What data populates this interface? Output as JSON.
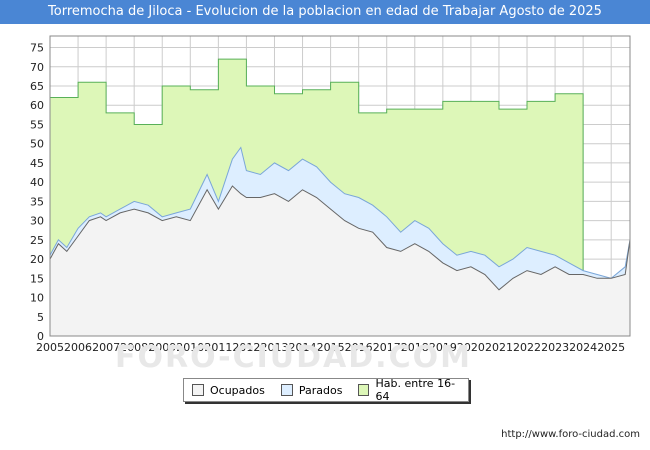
{
  "page": {
    "title": "Torremocha de Jiloca - Evolucion de la poblacion en edad de Trabajar Agosto de 2025",
    "footer": "http://www.foro-ciudad.com",
    "watermark": "FORO-CIUDAD.COM"
  },
  "colors": {
    "title_bg": "#4a86d4",
    "hab_fill": "#ddf7b8",
    "hab_line": "#58b058",
    "parados_fill": "#ddeeff",
    "parados_line": "#7aa6d8",
    "ocupados_fill": "#f3f3f3",
    "ocupados_line": "#666666",
    "grid": "#cccccc"
  },
  "chart_data": {
    "type": "area",
    "title": "Torremocha de Jiloca - Evolucion de la poblacion en edad de Trabajar Agosto de 2025",
    "xlabel": "",
    "ylabel": "",
    "xlim": [
      2005,
      2025.67
    ],
    "ylim": [
      0,
      78
    ],
    "yticks": [
      0,
      5,
      10,
      15,
      20,
      25,
      30,
      35,
      40,
      45,
      50,
      55,
      60,
      65,
      70,
      75
    ],
    "xticks": [
      "2005",
      "2006",
      "2007",
      "2008",
      "2009",
      "2010",
      "2011",
      "2012",
      "2013",
      "2014",
      "2015",
      "2016",
      "2017",
      "2018",
      "2019",
      "2020",
      "2021",
      "2022",
      "2023",
      "2024",
      "2025"
    ],
    "grid": true,
    "legend": [
      "Ocupados",
      "Parados",
      "Hab. entre 16-64"
    ],
    "legend_position": "bottom",
    "hab": {
      "x": [
        2005,
        2006,
        2006,
        2007,
        2007,
        2008,
        2008,
        2009,
        2009,
        2010,
        2010,
        2011,
        2011,
        2012,
        2012,
        2013,
        2013,
        2014,
        2014,
        2015,
        2015,
        2016,
        2016,
        2017,
        2017,
        2018,
        2018,
        2019,
        2019,
        2020,
        2020,
        2021,
        2021,
        2022,
        2022,
        2023,
        2023,
        2024,
        2024
      ],
      "values": [
        62,
        62,
        66,
        66,
        58,
        58,
        55,
        55,
        65,
        65,
        64,
        64,
        72,
        72,
        65,
        65,
        63,
        63,
        64,
        64,
        66,
        66,
        58,
        58,
        59,
        59,
        59,
        59,
        61,
        61,
        61,
        61,
        59,
        59,
        61,
        61,
        63,
        63,
        0
      ]
    },
    "parados": {
      "x": [
        2005,
        2005.3,
        2005.6,
        2006,
        2006.4,
        2006.8,
        2007,
        2007.5,
        2008,
        2008.5,
        2009,
        2009.5,
        2010,
        2010.6,
        2011,
        2011.5,
        2011.8,
        2012,
        2012.5,
        2013,
        2013.5,
        2014,
        2014.5,
        2015,
        2015.5,
        2016,
        2016.5,
        2017,
        2017.5,
        2018,
        2018.5,
        2019,
        2019.5,
        2020,
        2020.5,
        2021,
        2021.5,
        2022,
        2022.5,
        2023,
        2023.5,
        2024,
        2024.5,
        2025,
        2025.5,
        2025.67
      ],
      "values": [
        21,
        25,
        23,
        28,
        31,
        32,
        31,
        33,
        35,
        34,
        31,
        32,
        33,
        42,
        35,
        46,
        49,
        43,
        42,
        45,
        43,
        46,
        44,
        40,
        37,
        36,
        34,
        31,
        27,
        30,
        28,
        24,
        21,
        22,
        21,
        18,
        20,
        23,
        22,
        21,
        19,
        17,
        16,
        15,
        18,
        25
      ]
    },
    "ocupados": {
      "x": [
        2005,
        2005.3,
        2005.6,
        2006,
        2006.4,
        2006.8,
        2007,
        2007.5,
        2008,
        2008.5,
        2009,
        2009.5,
        2010,
        2010.6,
        2011,
        2011.5,
        2011.8,
        2012,
        2012.5,
        2013,
        2013.5,
        2014,
        2014.5,
        2015,
        2015.5,
        2016,
        2016.5,
        2017,
        2017.5,
        2018,
        2018.5,
        2019,
        2019.5,
        2020,
        2020.5,
        2021,
        2021.5,
        2022,
        2022.5,
        2023,
        2023.5,
        2024,
        2024.5,
        2025,
        2025.5,
        2025.67
      ],
      "values": [
        20,
        24,
        22,
        26,
        30,
        31,
        30,
        32,
        33,
        32,
        30,
        31,
        30,
        38,
        33,
        39,
        37,
        36,
        36,
        37,
        35,
        38,
        36,
        33,
        30,
        28,
        27,
        23,
        22,
        24,
        22,
        19,
        17,
        18,
        16,
        12,
        15,
        17,
        16,
        18,
        16,
        16,
        15,
        15,
        16,
        25
      ]
    }
  }
}
